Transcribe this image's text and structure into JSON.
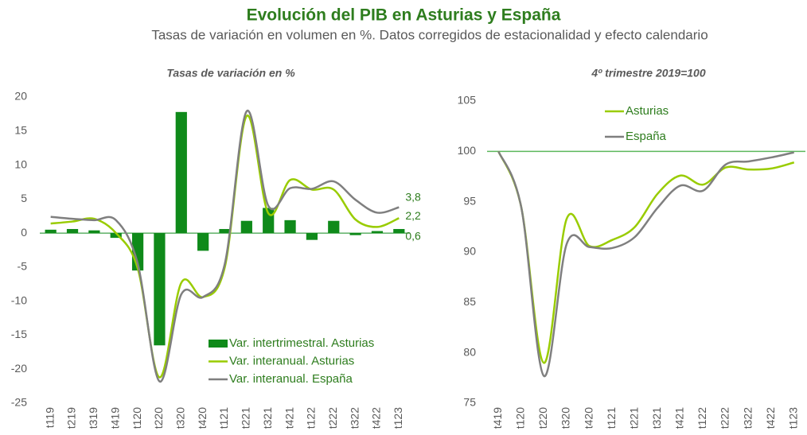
{
  "title": "Evolución del PIB en Asturias y España",
  "subtitle": "Tasas de variación en volumen en %. Datos corregidos de estacionalidad y efecto calendario",
  "chart_data": [
    {
      "type": "combo",
      "title": "Tasas de variación en %",
      "categories": [
        "t119",
        "t219",
        "t319",
        "t419",
        "t120",
        "t220",
        "t320",
        "t420",
        "t121",
        "t221",
        "t321",
        "t421",
        "t122",
        "t222",
        "t322",
        "t422",
        "t123"
      ],
      "series": [
        {
          "name": "Var. intertrimestral. Asturias",
          "type": "bar",
          "color": "#0f8a1a",
          "values": [
            0.5,
            0.6,
            0.4,
            -0.7,
            -5.5,
            -16.5,
            17.8,
            -2.6,
            0.6,
            1.8,
            3.7,
            1.9,
            -1.0,
            1.8,
            -0.3,
            0.3,
            0.6
          ],
          "value_labels": [
            null,
            null,
            null,
            null,
            null,
            null,
            null,
            null,
            null,
            null,
            null,
            null,
            null,
            null,
            null,
            null,
            "0,6"
          ]
        },
        {
          "name": "Var. interanual. Asturias",
          "type": "line",
          "color": "#99cc00",
          "values": [
            1.4,
            1.7,
            2.1,
            0.0,
            -5.2,
            -21.2,
            -7.3,
            -9.4,
            -5.0,
            17.2,
            2.9,
            7.8,
            6.4,
            6.4,
            2.0,
            0.9,
            2.2
          ],
          "value_labels": [
            null,
            null,
            null,
            null,
            null,
            null,
            null,
            null,
            null,
            null,
            null,
            null,
            null,
            null,
            null,
            null,
            "2,2"
          ]
        },
        {
          "name": "Var. interanual. España",
          "type": "line",
          "color": "#7f7f7f",
          "values": [
            2.4,
            2.1,
            1.9,
            1.9,
            -4.5,
            -21.8,
            -9.0,
            -9.4,
            -4.5,
            17.9,
            4.0,
            6.6,
            6.5,
            7.6,
            4.9,
            3.0,
            3.8
          ],
          "value_labels": [
            null,
            null,
            null,
            null,
            null,
            null,
            null,
            null,
            null,
            null,
            null,
            null,
            null,
            null,
            null,
            null,
            "3,8"
          ]
        }
      ],
      "ylim": [
        -25,
        20
      ],
      "yticks": [
        -25,
        -20,
        -15,
        -10,
        -5,
        0,
        5,
        10,
        15,
        20
      ],
      "legend": "lower right"
    },
    {
      "type": "line",
      "title": "4º trimestre 2019=100",
      "categories": [
        "t419",
        "t120",
        "t220",
        "t320",
        "t420",
        "t121",
        "t221",
        "t321",
        "t421",
        "t122",
        "t222",
        "t322",
        "t422",
        "t123"
      ],
      "series": [
        {
          "name": "Asturias",
          "type": "line",
          "color": "#99cc00",
          "values": [
            100,
            94.5,
            79.0,
            93.3,
            90.6,
            91.2,
            92.5,
            95.8,
            97.6,
            96.7,
            98.4,
            98.2,
            98.3,
            98.9
          ]
        },
        {
          "name": "España",
          "type": "line",
          "color": "#7f7f7f",
          "values": [
            100,
            94.5,
            77.7,
            90.8,
            90.5,
            90.4,
            91.5,
            94.4,
            96.6,
            96.1,
            98.7,
            99.0,
            99.4,
            99.9
          ]
        }
      ],
      "ylim": [
        75,
        105
      ],
      "yticks": [
        75,
        80,
        85,
        90,
        95,
        100,
        105
      ],
      "hline": {
        "value": 100,
        "color": "#5cb85c"
      },
      "legend": "upper left"
    }
  ]
}
